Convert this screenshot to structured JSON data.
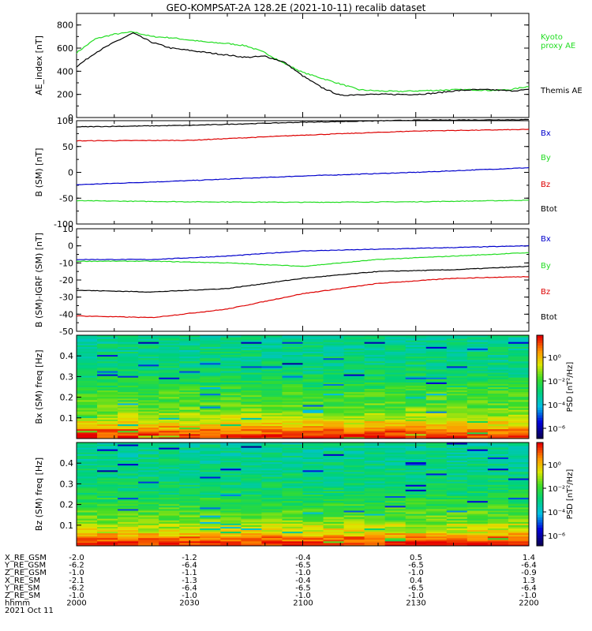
{
  "title": "GEO-KOMPSAT-2A 128.2E (2021-10-11) recalib dataset",
  "colors": {
    "black": "#000000",
    "green": "#22dd22",
    "blue": "#0000cc",
    "red": "#dd0000"
  },
  "chart_data": [
    {
      "type": "line",
      "panel": "ae_index",
      "ylabel": "AE_index [nT]",
      "ylim": [
        0,
        900
      ],
      "yticks": [
        0,
        200,
        400,
        600,
        800
      ],
      "x_time_range": [
        "2000",
        "2200"
      ],
      "series": [
        {
          "name": "Kyoto proxy AE",
          "label_lines": [
            "Kyoto",
            "proxy AE"
          ],
          "color": "green",
          "x": [
            0,
            5,
            10,
            15,
            20,
            25,
            30,
            35,
            40,
            45,
            50,
            55,
            60,
            65,
            70,
            75,
            80,
            85,
            90,
            95,
            100,
            105,
            110,
            115,
            120
          ],
          "y": [
            560,
            680,
            720,
            740,
            700,
            690,
            670,
            650,
            640,
            620,
            560,
            470,
            390,
            340,
            290,
            240,
            230,
            225,
            230,
            235,
            240,
            240,
            235,
            240,
            270
          ]
        },
        {
          "name": "Themis AE",
          "label_lines": [
            "Themis AE"
          ],
          "color": "black",
          "x": [
            0,
            5,
            10,
            15,
            20,
            25,
            30,
            35,
            40,
            45,
            50,
            55,
            60,
            65,
            70,
            75,
            80,
            85,
            90,
            95,
            100,
            105,
            110,
            115,
            120
          ],
          "y": [
            440,
            560,
            650,
            730,
            650,
            600,
            580,
            560,
            540,
            520,
            530,
            480,
            360,
            260,
            190,
            200,
            200,
            200,
            200,
            210,
            230,
            240,
            240,
            230,
            240
          ]
        }
      ]
    },
    {
      "type": "line",
      "panel": "b_sm",
      "ylabel": "B (SM) [nT]",
      "ylim": [
        -100,
        100
      ],
      "yticks": [
        -100,
        -50,
        0,
        50,
        100
      ],
      "x_time_range": [
        "2000",
        "2200"
      ],
      "series": [
        {
          "name": "Bx",
          "color": "blue",
          "x": [
            0,
            30,
            60,
            90,
            120
          ],
          "y": [
            -24,
            -16,
            -7,
            0,
            9
          ]
        },
        {
          "name": "By",
          "color": "green",
          "x": [
            0,
            30,
            60,
            90,
            120
          ],
          "y": [
            -55,
            -57,
            -58,
            -57,
            -54
          ]
        },
        {
          "name": "Bz",
          "color": "red",
          "x": [
            0,
            30,
            60,
            90,
            120
          ],
          "y": [
            61,
            62,
            72,
            80,
            83
          ]
        },
        {
          "name": "Btot",
          "color": "black",
          "x": [
            0,
            30,
            60,
            90,
            120
          ],
          "y": [
            88,
            91,
            97,
            101,
            102
          ]
        }
      ]
    },
    {
      "type": "line",
      "panel": "b_minus_igrf",
      "ylabel": "B (SM)-IGRF (SM) [nT]",
      "ylim": [
        -50,
        10
      ],
      "yticks": [
        -50,
        -40,
        -30,
        -20,
        -10,
        0,
        10
      ],
      "x_time_range": [
        "2000",
        "2200"
      ],
      "series": [
        {
          "name": "Bx",
          "color": "blue",
          "x": [
            0,
            20,
            40,
            60,
            80,
            100,
            120
          ],
          "y": [
            -8,
            -8,
            -6,
            -3,
            -2,
            -1,
            0
          ]
        },
        {
          "name": "By",
          "color": "green",
          "x": [
            0,
            20,
            40,
            60,
            80,
            100,
            120
          ],
          "y": [
            -9,
            -9,
            -10,
            -12,
            -8,
            -6,
            -4
          ]
        },
        {
          "name": "Bz",
          "color": "red",
          "x": [
            0,
            20,
            40,
            60,
            80,
            100,
            120
          ],
          "y": [
            -41,
            -42,
            -37,
            -28,
            -22,
            -19,
            -18
          ]
        },
        {
          "name": "Btot",
          "color": "black",
          "x": [
            0,
            20,
            40,
            60,
            80,
            100,
            120
          ],
          "y": [
            -26,
            -27,
            -25,
            -19,
            -15,
            -14,
            -12
          ]
        }
      ]
    },
    {
      "type": "heatmap",
      "panel": "bx_spectrogram",
      "ylabel": "Bx (SM) freq [Hz]",
      "ylim": [
        0,
        0.5
      ],
      "yticks": [
        0.1,
        0.2,
        0.3,
        0.4
      ],
      "colorbar_label": "PSD [nT²/Hz]",
      "colorbar_ticks": [
        "10⁰",
        "10⁻²",
        "10⁻⁴",
        "10⁻⁶"
      ],
      "x_time_range": [
        "2000",
        "2200"
      ],
      "cols": 22,
      "freq_profile_low_to_high": [
        0.95,
        0.9,
        0.82,
        0.75,
        0.7,
        0.66,
        0.62,
        0.6,
        0.58,
        0.58,
        0.57,
        0.55,
        0.52,
        0.5,
        0.48,
        0.46,
        0.45,
        0.45,
        0.44,
        0.44,
        0.43,
        0.43,
        0.42,
        0.42
      ]
    },
    {
      "type": "heatmap",
      "panel": "bz_spectrogram",
      "ylabel": "Bz (SM) freq [Hz]",
      "ylim": [
        0,
        0.5
      ],
      "yticks": [
        0.1,
        0.2,
        0.3,
        0.4
      ],
      "colorbar_label": "PSD [nT²/Hz]",
      "colorbar_ticks": [
        "10⁰",
        "10⁻²",
        "10⁻⁴",
        "10⁻⁶"
      ],
      "x_time_range": [
        "2000",
        "2200"
      ],
      "cols": 22,
      "freq_profile_low_to_high": [
        0.95,
        0.88,
        0.8,
        0.72,
        0.68,
        0.64,
        0.6,
        0.58,
        0.56,
        0.55,
        0.52,
        0.5,
        0.48,
        0.47,
        0.46,
        0.45,
        0.45,
        0.44,
        0.44,
        0.43,
        0.43,
        0.42,
        0.42,
        0.42
      ]
    }
  ],
  "ephemeris": {
    "rows": [
      {
        "label": "X_RE_GSM",
        "values": [
          "-2.0",
          "-1.2",
          "-0.4",
          "0.5",
          "1.4"
        ]
      },
      {
        "label": "Y_RE_GSM",
        "values": [
          "-6.2",
          "-6.4",
          "-6.5",
          "-6.5",
          "-6.4"
        ]
      },
      {
        "label": "Z_RE_GSM",
        "values": [
          "-1.0",
          "-1.1",
          "-1.0",
          "-1.0",
          "-0.9"
        ]
      },
      {
        "label": "X_RE_SM",
        "values": [
          "-2.1",
          "-1.3",
          "-0.4",
          "0.4",
          "1.3"
        ]
      },
      {
        "label": "Y_RE_SM",
        "values": [
          "-6.2",
          "-6.4",
          "-6.5",
          "-6.5",
          "-6.4"
        ]
      },
      {
        "label": "Z_RE_SM",
        "values": [
          "-1.0",
          "-1.0",
          "-1.0",
          "-1.0",
          "-1.0"
        ]
      },
      {
        "label": "hhmm",
        "values": [
          "2000",
          "2030",
          "2100",
          "2130",
          "2200"
        ]
      }
    ],
    "date": "2021 Oct 11"
  }
}
